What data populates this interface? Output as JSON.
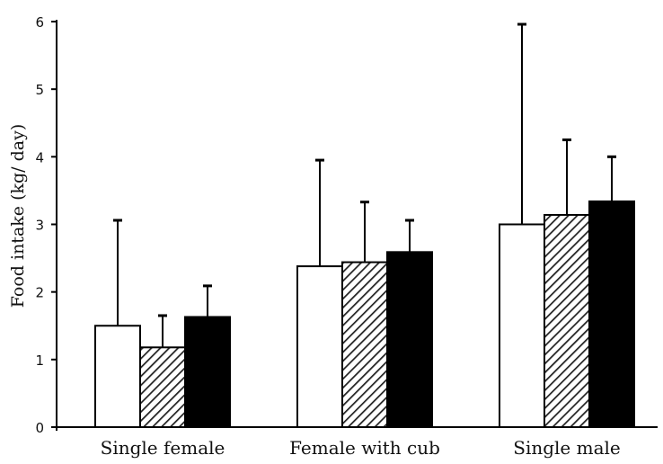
{
  "chart_data": {
    "type": "bar",
    "title": "",
    "xlabel": "",
    "ylabel": "Food intake (kg/ day)",
    "ylim": [
      0,
      6
    ],
    "yticks": [
      "0",
      "1",
      "2",
      "3",
      "4",
      "5",
      "6"
    ],
    "categories": [
      "Single female",
      "Female with cub",
      "Single male"
    ],
    "series": [
      {
        "pattern": "white",
        "values": [
          1.5,
          2.38,
          3.0
        ],
        "error_upper": [
          3.06,
          3.95,
          5.96
        ]
      },
      {
        "pattern": "hatched",
        "values": [
          1.18,
          2.44,
          3.14
        ],
        "error_upper": [
          1.65,
          3.33,
          4.25
        ]
      },
      {
        "pattern": "black",
        "values": [
          1.63,
          2.59,
          3.34
        ],
        "error_upper": [
          2.09,
          3.06,
          4.0
        ]
      }
    ],
    "grid": false,
    "legend": "none",
    "colors": {
      "white": "#ffffff",
      "hatched": "#555555",
      "black": "#000000",
      "stroke": "#000000"
    }
  }
}
